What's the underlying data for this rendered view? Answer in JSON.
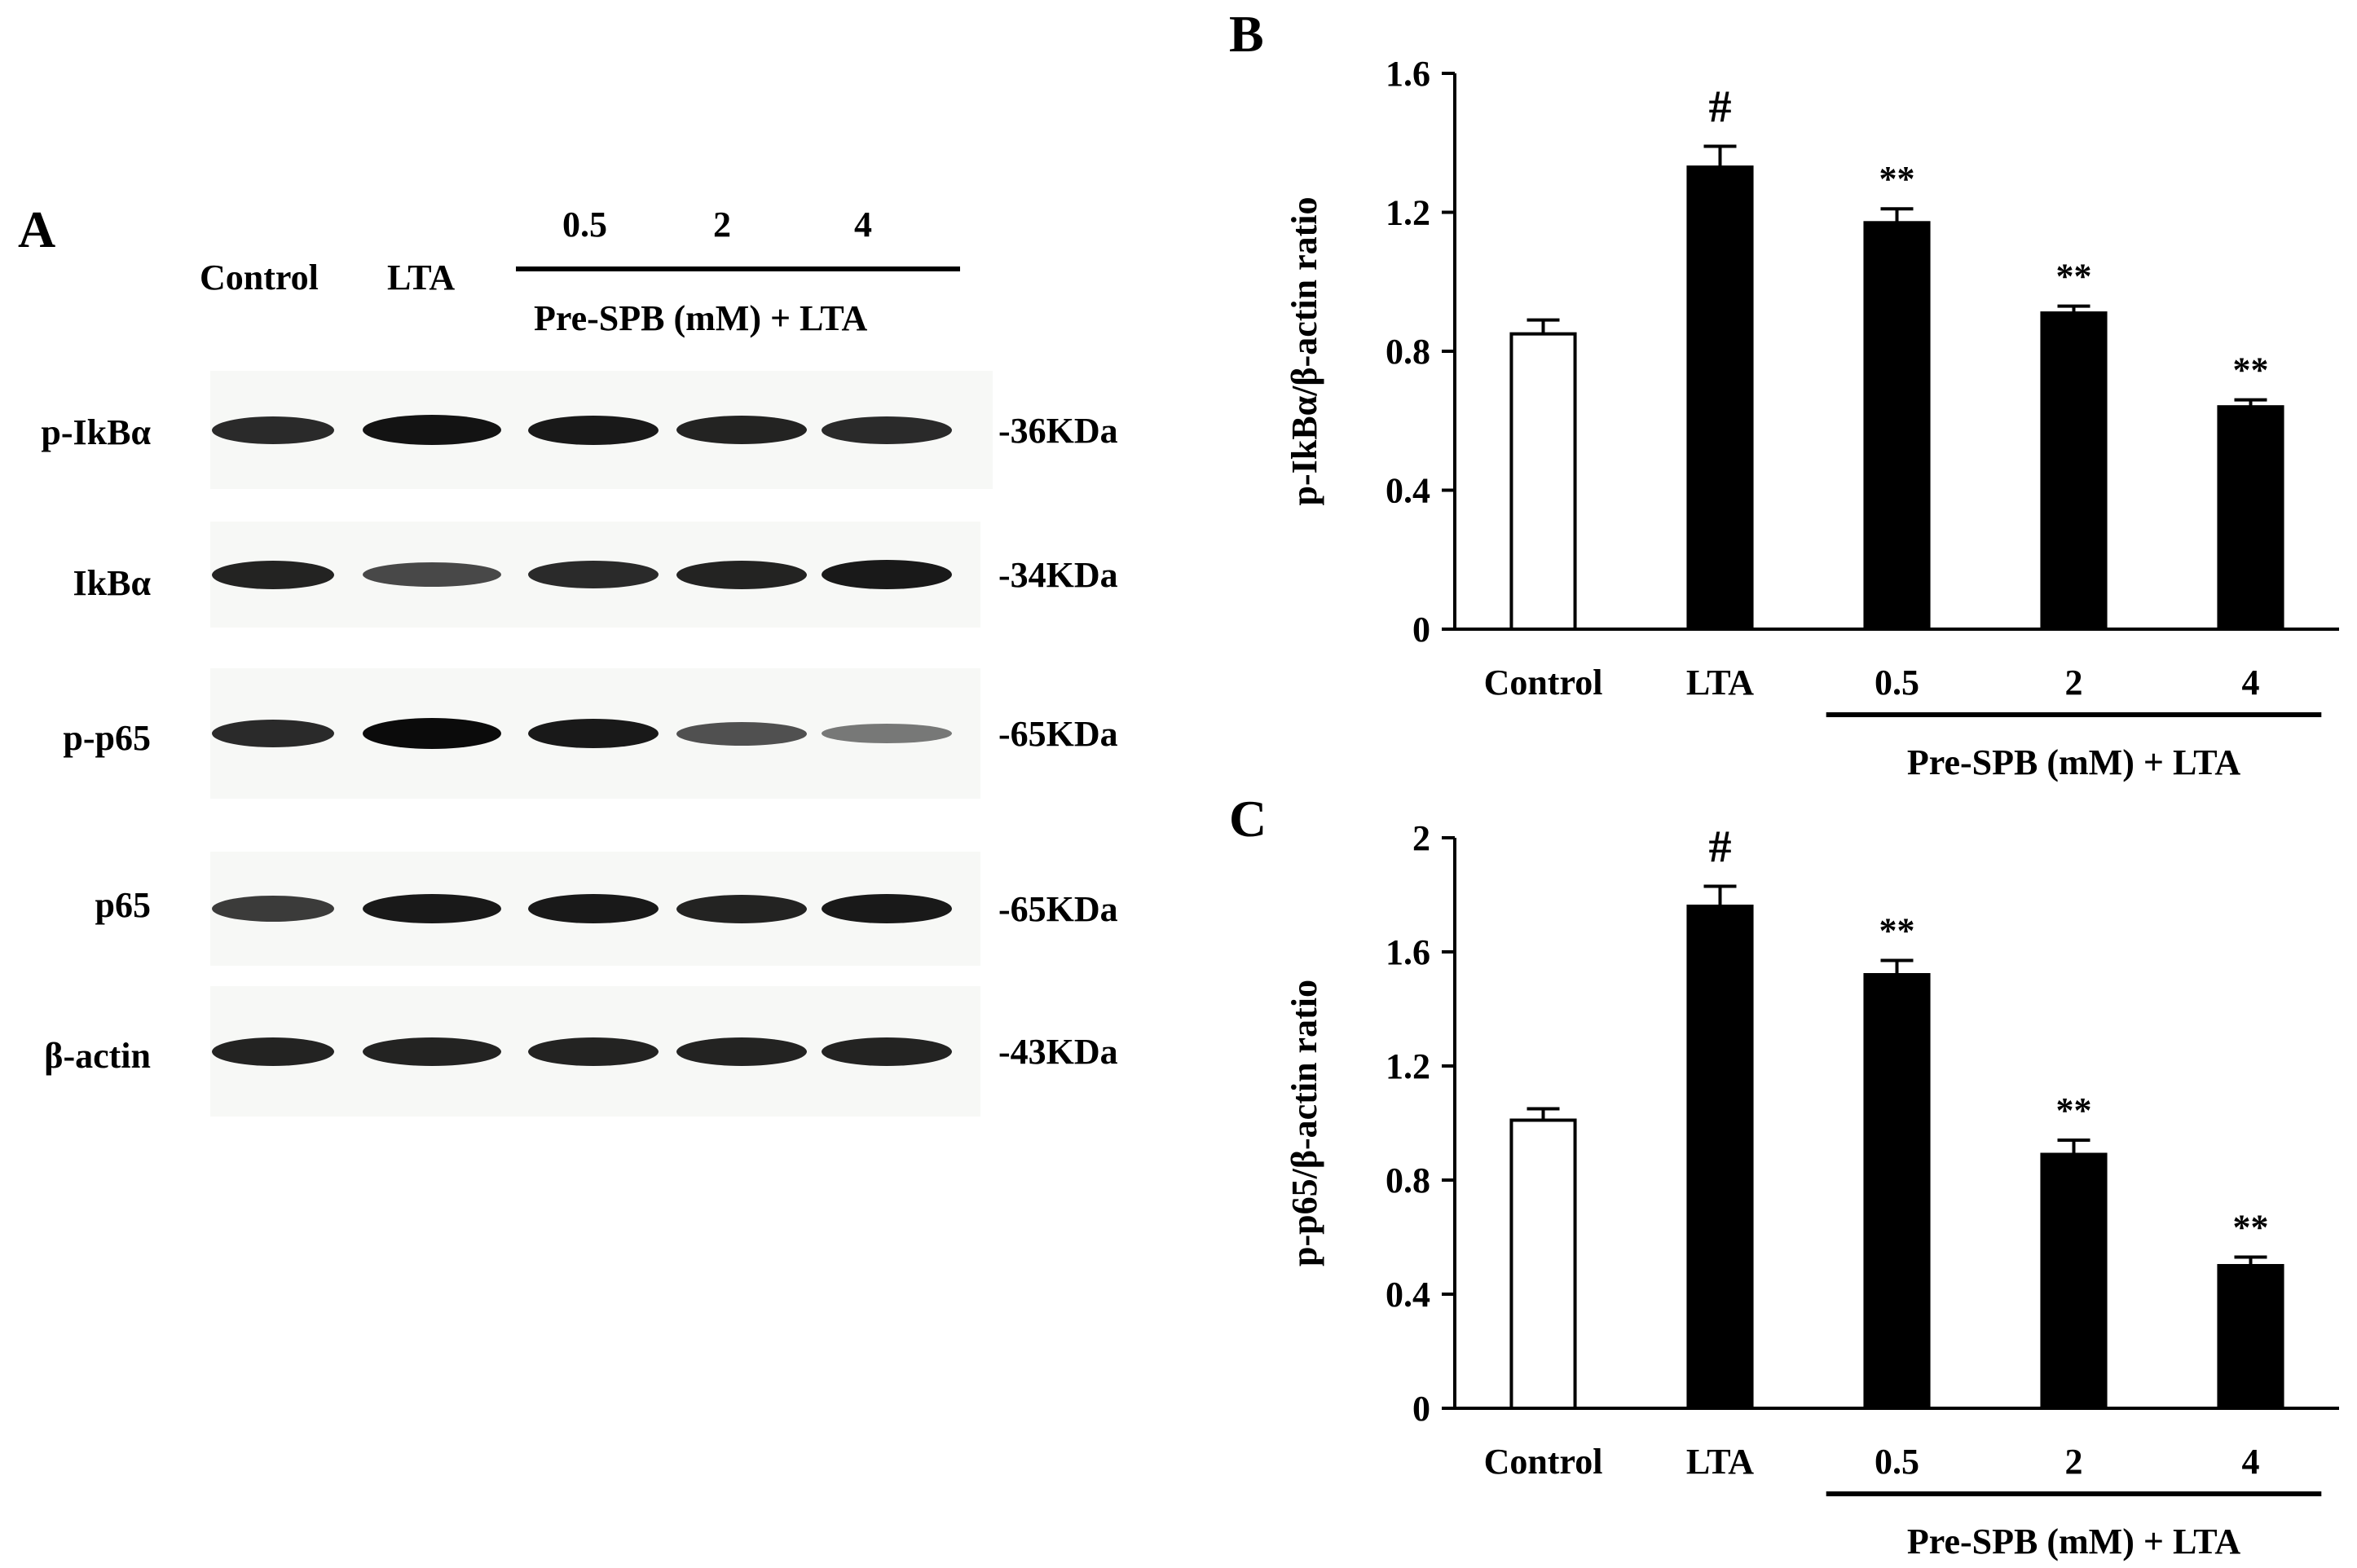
{
  "panel_a": {
    "letter": "A",
    "lanes": {
      "control": "Control",
      "lta": "LTA",
      "doses": [
        "0.5",
        "2",
        "4"
      ],
      "group": "Pre-SPB (mM) + LTA"
    },
    "blots": [
      {
        "label": "p-IkBα",
        "kda": "-36KDa",
        "intensity": [
          0.8,
          0.95,
          0.9,
          0.85,
          0.8
        ]
      },
      {
        "label": "IkBα",
        "kda": "-34KDa",
        "intensity": [
          0.85,
          0.6,
          0.8,
          0.85,
          0.9
        ]
      },
      {
        "label": "p-p65",
        "kda": "-65KDa",
        "intensity": [
          0.8,
          1.0,
          0.9,
          0.55,
          0.3
        ]
      },
      {
        "label": "p65",
        "kda": "-65KDa",
        "intensity": [
          0.7,
          0.9,
          0.9,
          0.85,
          0.9
        ]
      },
      {
        "label": "β-actin",
        "kda": "-43KDa",
        "intensity": [
          0.85,
          0.85,
          0.85,
          0.85,
          0.85
        ]
      }
    ]
  },
  "chart_data": [
    {
      "panel": "B",
      "type": "bar",
      "categories": [
        "Control",
        "LTA",
        "0.5",
        "2",
        "4"
      ],
      "group_label": "Pre-SPB (mM) + LTA",
      "values": [
        0.85,
        1.33,
        1.17,
        0.91,
        0.64
      ],
      "errors": [
        0.04,
        0.06,
        0.04,
        0.02,
        0.02
      ],
      "significance": [
        "",
        "#",
        "**",
        "**",
        "**"
      ],
      "fills": [
        "#ffffff",
        "#000000",
        "#000000",
        "#000000",
        "#000000"
      ],
      "ylabel": "p-IkBα/β-actin ratio",
      "ylim": [
        0,
        1.6
      ],
      "yticks": [
        "0",
        "0.4",
        "0.8",
        "1.2",
        "1.6"
      ],
      "grid": false
    },
    {
      "panel": "C",
      "type": "bar",
      "categories": [
        "Control",
        "LTA",
        "0.5",
        "2",
        "4"
      ],
      "group_label": "Pre-SPB (mM) + LTA",
      "values": [
        1.01,
        1.76,
        1.52,
        0.89,
        0.5
      ],
      "errors": [
        0.04,
        0.07,
        0.05,
        0.05,
        0.03
      ],
      "significance": [
        "",
        "#",
        "**",
        "**",
        "**"
      ],
      "fills": [
        "#ffffff",
        "#000000",
        "#000000",
        "#000000",
        "#000000"
      ],
      "ylabel": "p-p65/β-actin ratio",
      "ylim": [
        0,
        2
      ],
      "yticks": [
        "0",
        "0.4",
        "0.8",
        "1.2",
        "1.6",
        "2"
      ],
      "grid": false
    }
  ]
}
